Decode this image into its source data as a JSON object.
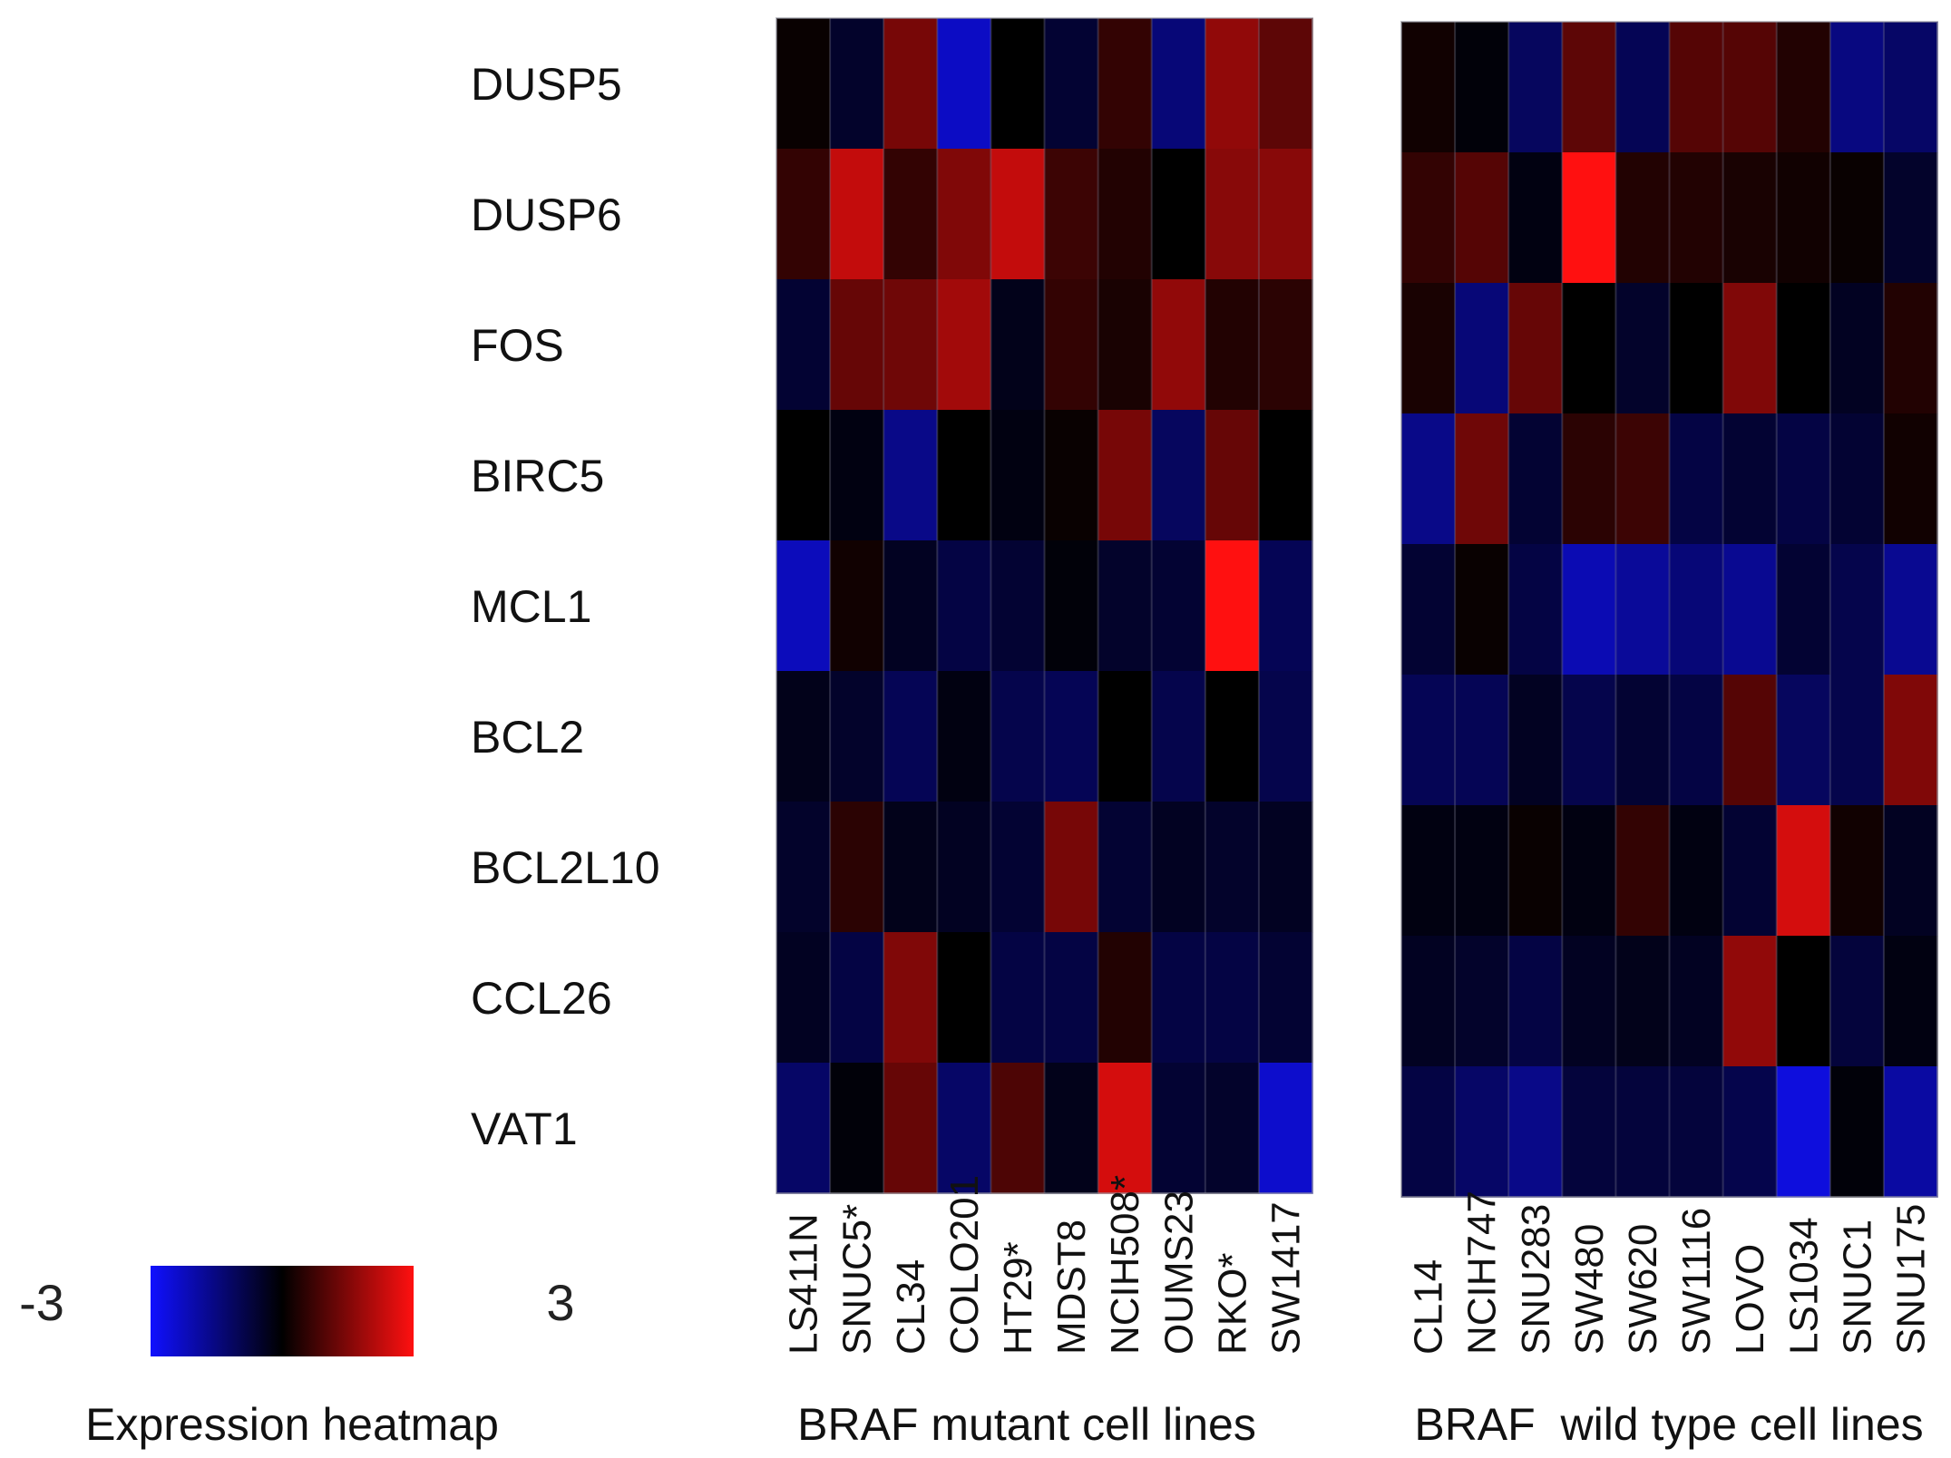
{
  "chart_data": {
    "type": "heatmap",
    "title": "",
    "rows": [
      "DUSP5",
      "DUSP6",
      "FOS",
      "BIRC5",
      "MCL1",
      "BCL2",
      "BCL2L10",
      "CCL26",
      "VAT1"
    ],
    "panels": [
      {
        "name": "BRAF mutant cell lines",
        "columns": [
          "LS411N",
          "SNUC5*",
          "CL34",
          "COLO201",
          "HT29*",
          "MDST8",
          "NCIH508*",
          "OUMS23",
          "RKO*",
          "SW1417"
        ],
        "values": [
          [
            0.1,
            -0.5,
            1.4,
            -2.3,
            0.0,
            -0.6,
            0.6,
            -1.4,
            1.7,
            1.1
          ],
          [
            0.6,
            2.3,
            0.6,
            1.5,
            2.3,
            0.7,
            0.4,
            0.0,
            1.6,
            1.6
          ],
          [
            -0.6,
            1.2,
            1.3,
            1.9,
            -0.3,
            0.6,
            0.3,
            1.7,
            0.4,
            0.5
          ],
          [
            0.0,
            -0.2,
            -1.6,
            0.0,
            -0.2,
            0.1,
            1.4,
            -1.1,
            1.2,
            0.0
          ],
          [
            -2.2,
            0.2,
            -0.4,
            -0.8,
            -0.6,
            -0.1,
            -0.5,
            -0.6,
            3.0,
            -1.0
          ],
          [
            -0.3,
            -0.5,
            -1.0,
            -0.2,
            -0.9,
            -1.0,
            0.0,
            -0.9,
            0.0,
            -0.9
          ],
          [
            -0.5,
            0.5,
            -0.3,
            -0.4,
            -0.6,
            1.4,
            -0.6,
            -0.4,
            -0.5,
            -0.4
          ],
          [
            -0.4,
            -0.8,
            1.5,
            0.0,
            -0.8,
            -0.8,
            0.4,
            -0.8,
            -0.8,
            -0.6
          ],
          [
            -1.2,
            -0.1,
            1.2,
            -1.2,
            0.9,
            -0.3,
            2.5,
            -0.6,
            -0.5,
            -2.4
          ]
        ]
      },
      {
        "name": "BRAF  wild type cell lines",
        "columns": [
          "CL14",
          "NCIH747",
          "SNU283",
          "SW480",
          "SW620",
          "SW1116",
          "LOVO",
          "LS1034",
          "SNUC1",
          "SNU175"
        ],
        "values": [
          [
            0.2,
            -0.1,
            -1.1,
            1.1,
            -1.0,
            1.0,
            1.0,
            0.4,
            -1.5,
            -1.2
          ],
          [
            0.6,
            1.0,
            -0.2,
            3.0,
            0.4,
            0.4,
            0.3,
            0.2,
            0.1,
            -0.5
          ],
          [
            0.3,
            -1.4,
            1.2,
            0.0,
            -0.5,
            0.0,
            1.5,
            0.0,
            -0.4,
            0.4
          ],
          [
            -1.6,
            1.3,
            -0.6,
            0.5,
            0.7,
            -0.8,
            -0.6,
            -0.8,
            -0.6,
            0.2
          ],
          [
            -0.6,
            0.1,
            -0.8,
            -2.1,
            -1.8,
            -1.4,
            -1.7,
            -0.6,
            -0.9,
            -1.7
          ],
          [
            -1.0,
            -1.0,
            -0.4,
            -0.9,
            -0.6,
            -0.8,
            1.0,
            -1.1,
            -0.9,
            1.5
          ],
          [
            -0.2,
            -0.2,
            0.1,
            -0.2,
            0.6,
            -0.2,
            -0.6,
            2.5,
            0.2,
            -0.4
          ],
          [
            -0.4,
            -0.5,
            -0.8,
            -0.4,
            -0.3,
            -0.4,
            1.7,
            0.0,
            -0.7,
            -0.2
          ],
          [
            -0.8,
            -1.2,
            -1.6,
            -0.7,
            -0.7,
            -0.7,
            -0.9,
            -2.6,
            -0.1,
            -1.9
          ]
        ]
      }
    ],
    "color_scale": {
      "min": -3,
      "max": 3,
      "min_label": "-3",
      "max_label": "3",
      "low_color": "#1010ff",
      "mid_color": "#000000",
      "high_color": "#ff1010",
      "label": "Expression heatmap"
    }
  }
}
